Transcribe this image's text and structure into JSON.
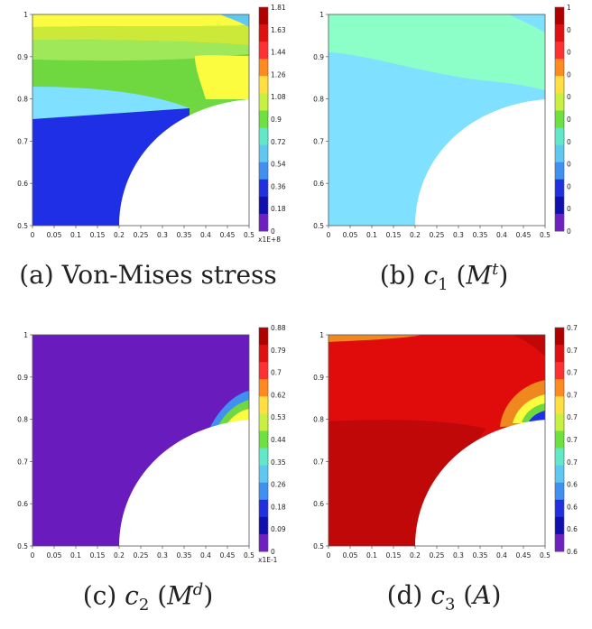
{
  "panels": [
    {
      "id": "a",
      "caption_prefix": "(a)",
      "caption_text": "Von-Mises stress",
      "colorbar_labels": [
        "1.81",
        "1.63",
        "1.44",
        "1.26",
        "1.08",
        "0.9",
        "0.72",
        "0.54",
        "0.36",
        "0.18",
        "0"
      ],
      "colorbar_multiplier": "x1E+8",
      "x_ticks": [
        "0",
        "0.05",
        "0.1",
        "0.15",
        "0.2",
        "0.25",
        "0.3",
        "0.35",
        "0.4",
        "0.45",
        "0.5"
      ],
      "y_ticks": [
        "1",
        "0.9",
        "0.8",
        "0.7",
        "0.6",
        "0.5"
      ]
    },
    {
      "id": "b",
      "caption_prefix": "(b)",
      "caption_var": "c",
      "caption_sub": "1",
      "caption_arg_base": "M",
      "caption_arg_sup": "t",
      "colorbar_labels": [
        "1",
        "0",
        "0",
        "0",
        "0",
        "0",
        "0",
        "0",
        "0",
        "0",
        "0"
      ],
      "x_ticks": [
        "0",
        "0.05",
        "0.1",
        "0.15",
        "0.2",
        "0.25",
        "0.3",
        "0.35",
        "0.4",
        "0.45",
        "0.5"
      ],
      "y_ticks": [
        "1",
        "0.9",
        "0.8",
        "0.7",
        "0.6",
        "0.5"
      ]
    },
    {
      "id": "c",
      "caption_prefix": "(c)",
      "caption_var": "c",
      "caption_sub": "2",
      "caption_arg_base": "M",
      "caption_arg_sup": "d",
      "colorbar_labels": [
        "0.88",
        "0.79",
        "0.7",
        "0.62",
        "0.53",
        "0.44",
        "0.35",
        "0.26",
        "0.18",
        "0.09",
        "0"
      ],
      "colorbar_multiplier": "x1E-1",
      "x_ticks": [
        "0",
        "0.05",
        "0.1",
        "0.15",
        "0.2",
        "0.25",
        "0.3",
        "0.35",
        "0.4",
        "0.45",
        "0.5"
      ],
      "y_ticks": [
        "1",
        "0.9",
        "0.8",
        "0.7",
        "0.6",
        "0.5"
      ]
    },
    {
      "id": "d",
      "caption_prefix": "(d)",
      "caption_var": "c",
      "caption_sub": "3",
      "caption_arg_base": "A",
      "colorbar_labels": [
        "0.7",
        "0.7",
        "0.7",
        "0.7",
        "0.7",
        "0.7",
        "0.7",
        "0.6",
        "0.6",
        "0.6",
        "0.6"
      ],
      "x_ticks": [
        "0",
        "0.05",
        "0.1",
        "0.15",
        "0.2",
        "0.25",
        "0.3",
        "0.35",
        "0.4",
        "0.45",
        "0.5"
      ],
      "y_ticks": [
        "1",
        "0.9",
        "0.8",
        "0.7",
        "0.6",
        "0.5"
      ]
    }
  ],
  "colors": {
    "colorbar_bands": [
      "#b00000",
      "#e01010",
      "#ff3030",
      "#ff8a20",
      "#ffe040",
      "#c8f040",
      "#6ee040",
      "#60e8c8",
      "#60c8f0",
      "#4090f0",
      "#2030e0",
      "#1010b0",
      "#7020c0"
    ],
    "purple": "#6a1bbd",
    "blue": "#1f2fe6",
    "lightblue": "#7fe0ff",
    "mint": "#8cffc8",
    "lightgreen": "#9ee85a",
    "green": "#6fd840",
    "yellowgreen": "#cce838",
    "yellow": "#fbfb40",
    "red": "#e00c0c",
    "darkred": "#c00808",
    "orange": "#f08820",
    "white": "#ffffff"
  }
}
